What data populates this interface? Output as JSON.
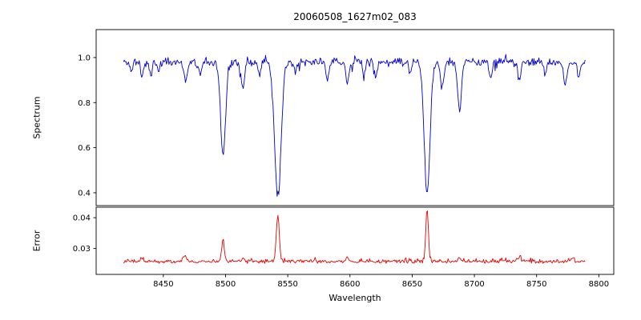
{
  "figure": {
    "background": "#ffffff"
  },
  "chart_data": {
    "type": "line",
    "title": "20060508_1627m02_083",
    "xlabel": "Wavelength",
    "xlim": [
      8396,
      8812
    ],
    "x_ticks": [
      8450,
      8500,
      8550,
      8600,
      8650,
      8700,
      8750,
      8800
    ],
    "x_tick_labels": [
      "8450",
      "8500",
      "8550",
      "8600",
      "8650",
      "8700",
      "8750",
      "8800"
    ],
    "x_start": 8418,
    "x_end": 8789,
    "n_points": 560,
    "panels": [
      {
        "name": "spectrum",
        "ylabel": "Spectrum",
        "color": "#0000cc",
        "ylim": [
          0.343,
          1.124
        ],
        "y_ticks": [
          1.0,
          0.8,
          0.6,
          0.4
        ],
        "y_tick_labels": [
          "1.0",
          "0.8",
          "0.6",
          "0.4"
        ],
        "continuum": 0.98,
        "noise_amplitude": 0.022,
        "down_spike_probability": 0.06,
        "down_spike_max": 0.05,
        "up_spike_probability": 0.05,
        "up_spike_max": 0.03,
        "seed": 11,
        "absorption_lines": [
          {
            "center": 8424,
            "depth": 0.045,
            "sigma": 1.0
          },
          {
            "center": 8433,
            "depth": 0.06,
            "sigma": 1.3
          },
          {
            "center": 8440,
            "depth": 0.05,
            "sigma": 1.1
          },
          {
            "center": 8446,
            "depth": 0.04,
            "sigma": 1.0
          },
          {
            "center": 8468,
            "depth": 0.09,
            "sigma": 1.4
          },
          {
            "center": 8480,
            "depth": 0.05,
            "sigma": 1.1
          },
          {
            "center": 8498,
            "depth": 0.42,
            "sigma": 2.0
          },
          {
            "center": 8514,
            "depth": 0.11,
            "sigma": 1.4
          },
          {
            "center": 8527,
            "depth": 0.06,
            "sigma": 1.1
          },
          {
            "center": 8542,
            "depth": 0.6,
            "sigma": 2.6
          },
          {
            "center": 8556,
            "depth": 0.05,
            "sigma": 1.1
          },
          {
            "center": 8582,
            "depth": 0.07,
            "sigma": 1.2
          },
          {
            "center": 8598,
            "depth": 0.09,
            "sigma": 1.3
          },
          {
            "center": 8611,
            "depth": 0.05,
            "sigma": 1.1
          },
          {
            "center": 8621,
            "depth": 0.06,
            "sigma": 1.1
          },
          {
            "center": 8648,
            "depth": 0.05,
            "sigma": 1.0
          },
          {
            "center": 8662,
            "depth": 0.59,
            "sigma": 2.3
          },
          {
            "center": 8674,
            "depth": 0.11,
            "sigma": 1.3
          },
          {
            "center": 8688,
            "depth": 0.22,
            "sigma": 1.5
          },
          {
            "center": 8713,
            "depth": 0.07,
            "sigma": 1.2
          },
          {
            "center": 8736,
            "depth": 0.08,
            "sigma": 1.2
          },
          {
            "center": 8757,
            "depth": 0.06,
            "sigma": 1.1
          },
          {
            "center": 8773,
            "depth": 0.1,
            "sigma": 1.3
          },
          {
            "center": 8784,
            "depth": 0.07,
            "sigma": 1.1
          }
        ]
      },
      {
        "name": "error",
        "ylabel": "Error",
        "color": "#e60000",
        "ylim": [
          0.0216,
          0.0434
        ],
        "y_ticks": [
          0.04,
          0.03
        ],
        "y_tick_labels": [
          "0.04",
          "0.03"
        ],
        "baseline": 0.0258,
        "noise_amplitude": 0.0007,
        "up_spike_probability": 0.08,
        "up_spike_max": 0.0012,
        "seed": 23,
        "emission_peaks": [
          {
            "center": 8433,
            "height": 0.0012,
            "sigma": 1.3
          },
          {
            "center": 8467,
            "height": 0.002,
            "sigma": 1.4
          },
          {
            "center": 8498,
            "height": 0.0068,
            "sigma": 1.1
          },
          {
            "center": 8514,
            "height": 0.0012,
            "sigma": 1.1
          },
          {
            "center": 8542,
            "height": 0.015,
            "sigma": 1.2
          },
          {
            "center": 8598,
            "height": 0.001,
            "sigma": 1.1
          },
          {
            "center": 8662,
            "height": 0.0172,
            "sigma": 1.0
          },
          {
            "center": 8688,
            "height": 0.0016,
            "sigma": 1.1
          },
          {
            "center": 8736,
            "height": 0.0012,
            "sigma": 1.1
          },
          {
            "center": 8779,
            "height": 0.0013,
            "sigma": 1.1
          }
        ]
      }
    ]
  }
}
